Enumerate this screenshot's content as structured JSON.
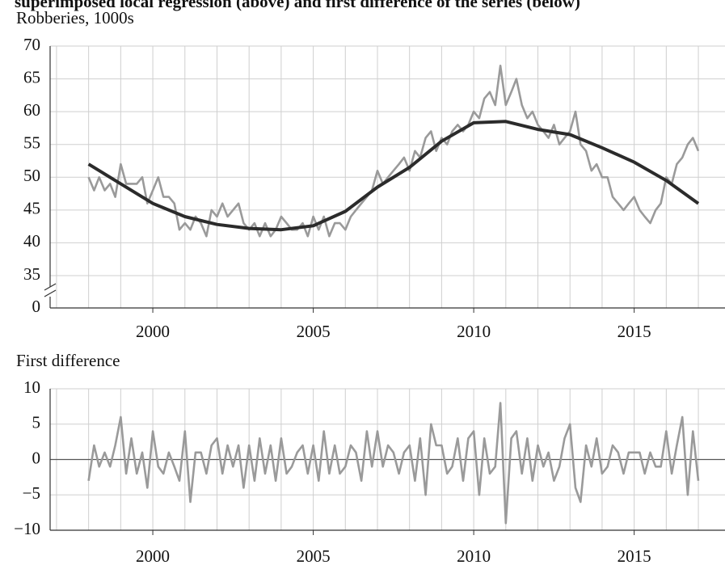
{
  "chart_data": [
    {
      "type": "line",
      "title": "superimposed local regression (above) and first difference of the series (below)",
      "ylabel": "Robberies, 1000s",
      "xlim": [
        1996.8,
        2017.83
      ],
      "xticks": [
        2000,
        2005,
        2010,
        2015
      ],
      "ylim": [
        0,
        70
      ],
      "ybreak": [
        0,
        35
      ],
      "yticks": [
        0,
        35,
        40,
        45,
        50,
        55,
        60,
        65,
        70
      ],
      "grid": true,
      "series": [
        {
          "color": "#9a9a9a",
          "x": [
            1998,
            1998.17,
            1998.33,
            1998.5,
            1998.67,
            1998.83,
            1999,
            1999.17,
            1999.33,
            1999.5,
            1999.67,
            1999.83,
            2000,
            2000.17,
            2000.33,
            2000.5,
            2000.67,
            2000.83,
            2001,
            2001.17,
            2001.33,
            2001.5,
            2001.67,
            2001.83,
            2002,
            2002.17,
            2002.33,
            2002.5,
            2002.67,
            2002.83,
            2003,
            2003.17,
            2003.33,
            2003.5,
            2003.67,
            2003.83,
            2004,
            2004.17,
            2004.33,
            2004.5,
            2004.67,
            2004.83,
            2005,
            2005.17,
            2005.33,
            2005.5,
            2005.67,
            2005.83,
            2006,
            2006.17,
            2006.33,
            2006.5,
            2006.67,
            2006.83,
            2007,
            2007.17,
            2007.33,
            2007.5,
            2007.67,
            2007.83,
            2008,
            2008.17,
            2008.33,
            2008.5,
            2008.67,
            2008.83,
            2009,
            2009.17,
            2009.33,
            2009.5,
            2009.67,
            2009.83,
            2010,
            2010.17,
            2010.33,
            2010.5,
            2010.67,
            2010.83,
            2011,
            2011.17,
            2011.33,
            2011.5,
            2011.67,
            2011.83,
            2012,
            2012.17,
            2012.33,
            2012.5,
            2012.67,
            2012.83,
            2013,
            2013.17,
            2013.33,
            2013.5,
            2013.67,
            2013.83,
            2014,
            2014.17,
            2014.33,
            2014.5,
            2014.67,
            2014.83,
            2015,
            2015.17,
            2015.33,
            2015.5,
            2015.67,
            2015.83,
            2016,
            2016.17,
            2016.33,
            2016.5,
            2016.67,
            2016.83,
            2017
          ],
          "values": [
            50,
            48,
            50,
            48,
            49,
            47,
            52,
            49,
            49,
            49,
            50,
            46,
            48,
            50,
            47,
            47,
            46,
            42,
            43,
            42,
            44,
            43,
            41,
            45,
            44,
            46,
            44,
            45,
            46,
            43,
            42,
            43,
            41,
            43,
            41,
            42,
            44,
            43,
            42,
            42,
            43,
            41,
            44,
            42,
            44,
            41,
            43,
            43,
            42,
            44,
            45,
            46,
            47,
            48,
            51,
            49,
            50,
            51,
            52,
            53,
            51,
            54,
            53,
            56,
            57,
            54,
            56,
            55,
            57,
            58,
            57,
            58,
            60,
            59,
            62,
            63,
            61,
            67,
            61,
            63,
            65,
            61,
            59,
            60,
            58,
            57,
            56,
            58,
            55,
            56,
            57,
            60,
            55,
            54,
            51,
            52,
            50,
            50,
            47,
            46,
            45,
            46,
            47,
            45,
            44,
            43,
            45,
            46,
            50,
            49,
            52,
            53,
            55,
            56,
            54
          ]
        },
        {
          "color": "#2b2b2b",
          "x": [
            1998,
            1999,
            2000,
            2001,
            2002,
            2003,
            2004,
            2005,
            2006,
            2007,
            2008,
            2009,
            2010,
            2011,
            2012,
            2013,
            2014,
            2015,
            2016,
            2017
          ],
          "values": [
            52,
            49,
            46,
            44,
            42.8,
            42.2,
            42,
            42.6,
            44.8,
            48.5,
            51.5,
            55.5,
            58.3,
            58.5,
            57.3,
            56.5,
            54.5,
            52.3,
            49.5,
            46
          ]
        }
      ]
    },
    {
      "type": "line",
      "ylabel": "First difference",
      "xlim": [
        1996.8,
        2017.83
      ],
      "xticks": [
        2000,
        2005,
        2010,
        2015
      ],
      "ylim": [
        -10,
        10
      ],
      "yticks": [
        {
          "value": -10,
          "label": "−10"
        },
        {
          "value": -5,
          "label": "−5"
        },
        0,
        5,
        10
      ],
      "grid": true,
      "zero_line": true,
      "series": [
        {
          "color": "#9a9a9a",
          "x": [
            1998,
            1998.17,
            1998.33,
            1998.5,
            1998.67,
            1998.83,
            1999,
            1999.17,
            1999.33,
            1999.5,
            1999.67,
            1999.83,
            2000,
            2000.17,
            2000.33,
            2000.5,
            2000.67,
            2000.83,
            2001,
            2001.17,
            2001.33,
            2001.5,
            2001.67,
            2001.83,
            2002,
            2002.17,
            2002.33,
            2002.5,
            2002.67,
            2002.83,
            2003,
            2003.17,
            2003.33,
            2003.5,
            2003.67,
            2003.83,
            2004,
            2004.17,
            2004.33,
            2004.5,
            2004.67,
            2004.83,
            2005,
            2005.17,
            2005.33,
            2005.5,
            2005.67,
            2005.83,
            2006,
            2006.17,
            2006.33,
            2006.5,
            2006.67,
            2006.83,
            2007,
            2007.17,
            2007.33,
            2007.5,
            2007.67,
            2007.83,
            2008,
            2008.17,
            2008.33,
            2008.5,
            2008.67,
            2008.83,
            2009,
            2009.17,
            2009.33,
            2009.5,
            2009.67,
            2009.83,
            2010,
            2010.17,
            2010.33,
            2010.5,
            2010.67,
            2010.83,
            2011,
            2011.17,
            2011.33,
            2011.5,
            2011.67,
            2011.83,
            2012,
            2012.17,
            2012.33,
            2012.5,
            2012.67,
            2012.83,
            2013,
            2013.17,
            2013.33,
            2013.5,
            2013.67,
            2013.83,
            2014,
            2014.17,
            2014.33,
            2014.5,
            2014.67,
            2014.83,
            2015,
            2015.17,
            2015.33,
            2015.5,
            2015.67,
            2015.83,
            2016,
            2016.17,
            2016.33,
            2016.5,
            2016.67,
            2016.83,
            2017
          ],
          "values": [
            -3,
            2,
            -1,
            1,
            -1,
            2,
            6,
            -2,
            3,
            -2,
            1,
            -4,
            4,
            -1,
            -2,
            1,
            -1,
            -3,
            4,
            -6,
            1,
            1,
            -2,
            2,
            3,
            -2,
            2,
            -1,
            2,
            -4,
            2,
            -3,
            3,
            -2,
            2,
            -3,
            3,
            -2,
            -1,
            1,
            2,
            -2,
            2,
            -3,
            4,
            -2,
            2,
            -2,
            -1,
            2,
            1,
            -3,
            4,
            -1,
            4,
            -1,
            2,
            1,
            -2,
            1,
            2,
            -3,
            3,
            -5,
            5,
            2,
            2,
            -2,
            -1,
            3,
            -3,
            3,
            4,
            -5,
            3,
            -2,
            -1,
            8,
            -9,
            3,
            4,
            -2,
            3,
            -3,
            2,
            -1,
            1,
            -3,
            -1,
            3,
            5,
            -4,
            -6,
            2,
            -1,
            3,
            -2,
            -1,
            2,
            1,
            -2,
            1,
            1,
            1,
            -2,
            1,
            -1,
            -1,
            4,
            -2,
            2,
            6,
            -5,
            4,
            -3
          ]
        }
      ]
    }
  ]
}
